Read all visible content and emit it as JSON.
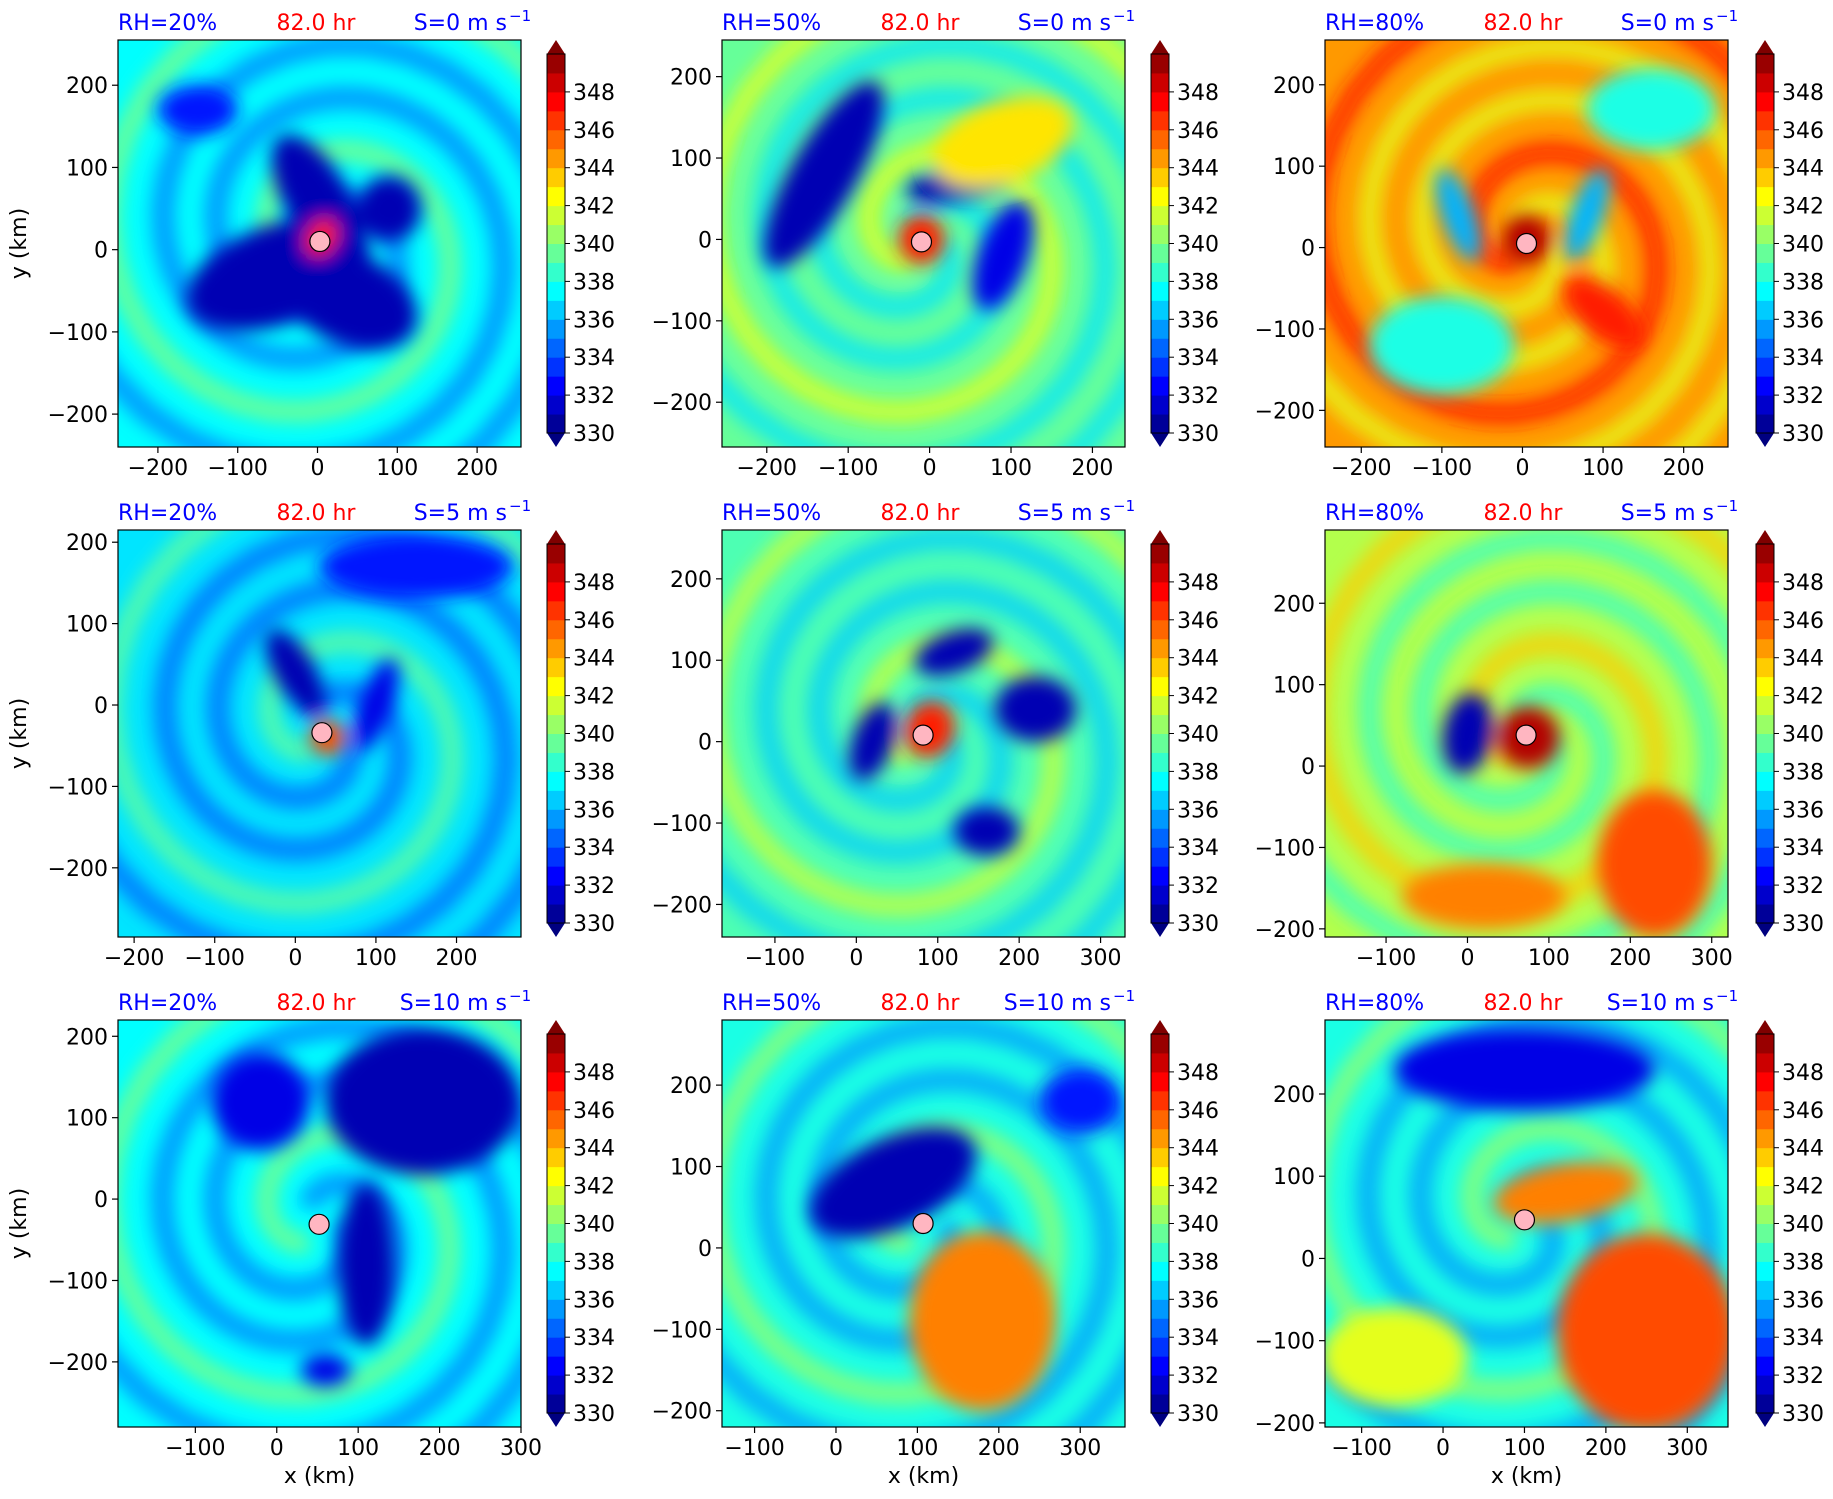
{
  "figure": {
    "colors": {
      "title_rh": "#0000ff",
      "title_time": "#ff0000",
      "title_shear": "#0000ff",
      "center_marker_fill": "#ffb6c1"
    },
    "colormap": "jet",
    "colorbar_ticks": [
      "330",
      "332",
      "334",
      "336",
      "338",
      "340",
      "342",
      "344",
      "346",
      "348"
    ],
    "colorbar_range": [
      330,
      350
    ],
    "colorbar_extend": "both",
    "ylabel": "y (km)",
    "xlabel": "x (km)"
  },
  "chart_data": [
    {
      "type": "heatmap",
      "rh_label": "RH=20%",
      "time_label": "82.0 hr",
      "shear_label": "S=0 m s",
      "shear_exp": "−1",
      "xlim": [
        -250,
        255
      ],
      "ylim": [
        -240,
        255
      ],
      "xticks": [
        "−200",
        "−100",
        "0",
        "100",
        "200"
      ],
      "xtick_vals": [
        -200,
        -100,
        0,
        100,
        200
      ],
      "yticks": [
        "−200",
        "−100",
        "0",
        "100",
        "200"
      ],
      "ytick_vals": [
        -200,
        -100,
        0,
        100,
        200
      ],
      "center": [
        3,
        10
      ],
      "background_k": 337.5,
      "features": [
        {
          "k": 331,
          "x": -50,
          "y": -30,
          "rx": 120,
          "ry": 60,
          "rot": -20
        },
        {
          "k": 331,
          "x": 40,
          "y": -60,
          "rx": 90,
          "ry": 55,
          "rot": 25
        },
        {
          "k": 331,
          "x": 0,
          "y": 60,
          "rx": 40,
          "ry": 90,
          "rot": -30
        },
        {
          "k": 331,
          "x": 90,
          "y": 50,
          "rx": 40,
          "ry": 40,
          "rot": 0
        },
        {
          "k": 347,
          "x": 5,
          "y": 15,
          "rx": 18,
          "ry": 24,
          "rot": 30
        },
        {
          "k": 333,
          "x": -150,
          "y": 170,
          "rx": 50,
          "ry": 30,
          "rot": 0
        }
      ]
    },
    {
      "type": "heatmap",
      "rh_label": "RH=50%",
      "time_label": "82.0 hr",
      "shear_label": "S=0 m s",
      "shear_exp": "−1",
      "xlim": [
        -255,
        240
      ],
      "ylim": [
        -255,
        245
      ],
      "xticks": [
        "−200",
        "−100",
        "0",
        "100",
        "200"
      ],
      "xtick_vals": [
        -200,
        -100,
        0,
        100,
        200
      ],
      "yticks": [
        "−200",
        "−100",
        "0",
        "100",
        "200"
      ],
      "ytick_vals": [
        -200,
        -100,
        0,
        100,
        200
      ],
      "center": [
        -10,
        -3
      ],
      "background_k": 339.5,
      "features": [
        {
          "k": 331,
          "x": -130,
          "y": 80,
          "rx": 40,
          "ry": 130,
          "rot": 30
        },
        {
          "k": 331,
          "x": 40,
          "y": 70,
          "rx": 70,
          "ry": 22,
          "rot": -10
        },
        {
          "k": 332,
          "x": 90,
          "y": -20,
          "rx": 30,
          "ry": 70,
          "rot": 20
        },
        {
          "k": 347,
          "x": -10,
          "y": 0,
          "rx": 28,
          "ry": 30,
          "rot": 0
        },
        {
          "k": 343,
          "x": 90,
          "y": 120,
          "rx": 90,
          "ry": 50,
          "rot": -20
        }
      ]
    },
    {
      "type": "heatmap",
      "rh_label": "RH=80%",
      "time_label": "82.0 hr",
      "shear_label": "S=0 m s",
      "shear_exp": "−1",
      "xlim": [
        -245,
        255
      ],
      "ylim": [
        -245,
        255
      ],
      "xticks": [
        "−200",
        "−100",
        "0",
        "100",
        "200"
      ],
      "xtick_vals": [
        -200,
        -100,
        0,
        100,
        200
      ],
      "yticks": [
        "−200",
        "−100",
        "0",
        "100",
        "200"
      ],
      "ytick_vals": [
        -200,
        -100,
        0,
        100,
        200
      ],
      "center": [
        5,
        5
      ],
      "background_k": 344.5,
      "features": [
        {
          "k": 338,
          "x": -100,
          "y": -120,
          "rx": 90,
          "ry": 60,
          "rot": 0
        },
        {
          "k": 338,
          "x": 160,
          "y": 170,
          "rx": 80,
          "ry": 50,
          "rot": 0
        },
        {
          "k": 336,
          "x": 80,
          "y": 40,
          "rx": 20,
          "ry": 60,
          "rot": 20
        },
        {
          "k": 336,
          "x": -80,
          "y": 40,
          "rx": 20,
          "ry": 60,
          "rot": -20
        },
        {
          "k": 349,
          "x": 5,
          "y": 10,
          "rx": 30,
          "ry": 30,
          "rot": 0
        },
        {
          "k": 347,
          "x": 100,
          "y": -80,
          "rx": 60,
          "ry": 30,
          "rot": 40
        }
      ]
    },
    {
      "type": "heatmap",
      "rh_label": "RH=20%",
      "time_label": "82.0 hr",
      "shear_label": "S=5 m s",
      "shear_exp": "−1",
      "xlim": [
        -220,
        280
      ],
      "ylim": [
        -285,
        215
      ],
      "xticks": [
        "−200",
        "−100",
        "0",
        "100",
        "200"
      ],
      "xtick_vals": [
        -200,
        -100,
        0,
        100,
        200
      ],
      "yticks": [
        "−200",
        "−100",
        "0",
        "100",
        "200"
      ],
      "ytick_vals": [
        -200,
        -100,
        0,
        100,
        200
      ],
      "center": [
        33,
        -34
      ],
      "background_k": 337,
      "features": [
        {
          "k": 331,
          "x": 0,
          "y": 40,
          "rx": 25,
          "ry": 60,
          "rot": -30
        },
        {
          "k": 332,
          "x": 100,
          "y": 0,
          "rx": 20,
          "ry": 60,
          "rot": 20
        },
        {
          "k": 333,
          "x": 150,
          "y": 170,
          "rx": 120,
          "ry": 40,
          "rot": 0
        },
        {
          "k": 346,
          "x": 40,
          "y": -40,
          "rx": 22,
          "ry": 22,
          "rot": 0
        }
      ]
    },
    {
      "type": "heatmap",
      "rh_label": "RH=50%",
      "time_label": "82.0 hr",
      "shear_label": "S=5 m s",
      "shear_exp": "−1",
      "xlim": [
        -165,
        330
      ],
      "ylim": [
        -240,
        260
      ],
      "xticks": [
        "−100",
        "0",
        "100",
        "200",
        "300"
      ],
      "xtick_vals": [
        -100,
        0,
        100,
        200,
        300
      ],
      "yticks": [
        "−200",
        "−100",
        "0",
        "100",
        "200"
      ],
      "ytick_vals": [
        -200,
        -100,
        0,
        100,
        200
      ],
      "center": [
        82,
        8
      ],
      "background_k": 339,
      "features": [
        {
          "k": 331,
          "x": 220,
          "y": 40,
          "rx": 50,
          "ry": 40,
          "rot": 0
        },
        {
          "k": 331,
          "x": 120,
          "y": 110,
          "rx": 50,
          "ry": 25,
          "rot": -20
        },
        {
          "k": 331,
          "x": 20,
          "y": 0,
          "rx": 25,
          "ry": 50,
          "rot": 20
        },
        {
          "k": 331,
          "x": 160,
          "y": -110,
          "rx": 40,
          "ry": 30,
          "rot": 0
        },
        {
          "k": 347,
          "x": 90,
          "y": 15,
          "rx": 30,
          "ry": 35,
          "rot": 20
        }
      ]
    },
    {
      "type": "heatmap",
      "rh_label": "RH=80%",
      "time_label": "82.0 hr",
      "shear_label": "S=5 m s",
      "shear_exp": "−1",
      "xlim": [
        -175,
        320
      ],
      "ylim": [
        -210,
        290
      ],
      "xticks": [
        "−100",
        "0",
        "100",
        "200",
        "300"
      ],
      "xtick_vals": [
        -100,
        0,
        100,
        200,
        300
      ],
      "yticks": [
        "−200",
        "−100",
        "0",
        "100",
        "200"
      ],
      "ytick_vals": [
        -200,
        -100,
        0,
        100,
        200
      ],
      "center": [
        72,
        38
      ],
      "background_k": 341,
      "features": [
        {
          "k": 331,
          "x": 0,
          "y": 40,
          "rx": 30,
          "ry": 50,
          "rot": 10
        },
        {
          "k": 349,
          "x": 75,
          "y": 35,
          "rx": 38,
          "ry": 38,
          "rot": 0
        },
        {
          "k": 346,
          "x": 230,
          "y": -120,
          "rx": 70,
          "ry": 90,
          "rot": 0
        },
        {
          "k": 345,
          "x": 20,
          "y": -160,
          "rx": 100,
          "ry": 40,
          "rot": 0
        }
      ]
    },
    {
      "type": "heatmap",
      "rh_label": "RH=20%",
      "time_label": "82.0 hr",
      "shear_label": "S=10 m s",
      "shear_exp": "−1",
      "xlim": [
        -195,
        300
      ],
      "ylim": [
        -280,
        220
      ],
      "xticks": [
        "−100",
        "0",
        "100",
        "200",
        "300"
      ],
      "xtick_vals": [
        -100,
        0,
        100,
        200,
        300
      ],
      "yticks": [
        "−200",
        "−100",
        "0",
        "100",
        "200"
      ],
      "ytick_vals": [
        -200,
        -100,
        0,
        100,
        200
      ],
      "center": [
        52,
        -31
      ],
      "background_k": 337.5,
      "features": [
        {
          "k": 331,
          "x": 180,
          "y": 120,
          "rx": 120,
          "ry": 90,
          "rot": 0
        },
        {
          "k": 331,
          "x": 110,
          "y": -80,
          "rx": 35,
          "ry": 100,
          "rot": 0
        },
        {
          "k": 332,
          "x": -20,
          "y": 120,
          "rx": 60,
          "ry": 60,
          "rot": 0
        },
        {
          "k": 332,
          "x": 60,
          "y": -210,
          "rx": 30,
          "ry": 20,
          "rot": 0
        }
      ]
    },
    {
      "type": "heatmap",
      "rh_label": "RH=50%",
      "time_label": "82.0 hr",
      "shear_label": "S=10 m s",
      "shear_exp": "−1",
      "xlim": [
        -140,
        355
      ],
      "ylim": [
        -220,
        280
      ],
      "xticks": [
        "−100",
        "0",
        "100",
        "200",
        "300"
      ],
      "xtick_vals": [
        -100,
        0,
        100,
        200,
        300
      ],
      "yticks": [
        "−200",
        "−100",
        "0",
        "100",
        "200"
      ],
      "ytick_vals": [
        -200,
        -100,
        0,
        100,
        200
      ],
      "center": [
        107,
        30
      ],
      "background_k": 338,
      "features": [
        {
          "k": 331,
          "x": 70,
          "y": 80,
          "rx": 110,
          "ry": 55,
          "rot": -25
        },
        {
          "k": 345,
          "x": 180,
          "y": -90,
          "rx": 90,
          "ry": 110,
          "rot": 0
        },
        {
          "k": 333,
          "x": 300,
          "y": 180,
          "rx": 50,
          "ry": 40,
          "rot": 0
        }
      ]
    },
    {
      "type": "heatmap",
      "rh_label": "RH=80%",
      "time_label": "82.0 hr",
      "shear_label": "S=10 m s",
      "shear_exp": "−1",
      "xlim": [
        -145,
        350
      ],
      "ylim": [
        -205,
        290
      ],
      "xticks": [
        "−100",
        "0",
        "100",
        "200",
        "300"
      ],
      "xtick_vals": [
        -100,
        0,
        100,
        200,
        300
      ],
      "yticks": [
        "−200",
        "−100",
        "0",
        "100",
        "200"
      ],
      "ytick_vals": [
        -200,
        -100,
        0,
        100,
        200
      ],
      "center": [
        100,
        47
      ],
      "background_k": 338,
      "features": [
        {
          "k": 332,
          "x": 100,
          "y": 230,
          "rx": 160,
          "ry": 50,
          "rot": 0
        },
        {
          "k": 346,
          "x": 250,
          "y": -90,
          "rx": 110,
          "ry": 120,
          "rot": 0
        },
        {
          "k": 345,
          "x": 150,
          "y": 80,
          "rx": 90,
          "ry": 35,
          "rot": -10
        },
        {
          "k": 342,
          "x": -60,
          "y": -120,
          "rx": 90,
          "ry": 60,
          "rot": 0
        }
      ]
    }
  ]
}
